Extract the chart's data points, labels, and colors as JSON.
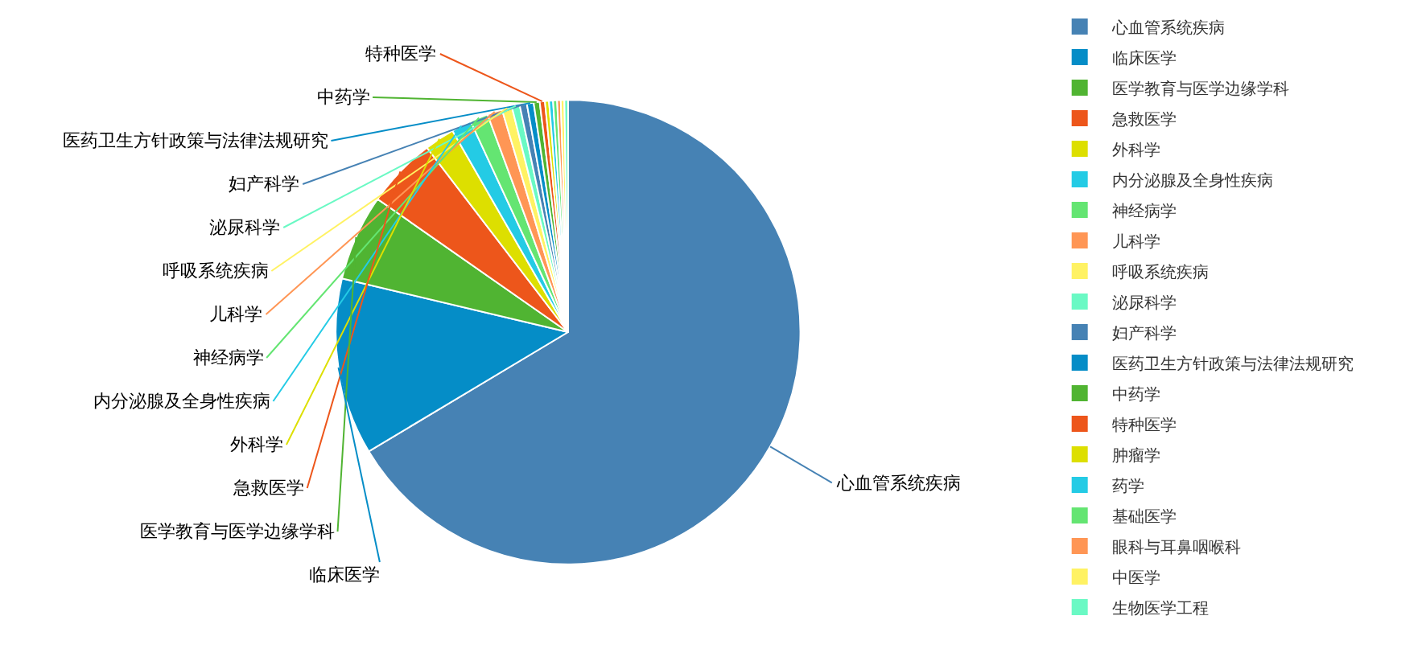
{
  "chart_data": {
    "type": "pie",
    "categories": [
      "心血管系统疾病",
      "临床医学",
      "医学教育与医学边缘学科",
      "急救医学",
      "外科学",
      "内分泌腺及全身性疾病",
      "神经病学",
      "儿科学",
      "呼吸系统疾病",
      "泌尿科学",
      "妇产科学",
      "医药卫生方针政策与法律法规研究",
      "中药学",
      "特种医学",
      "肿瘤学",
      "药学",
      "基础医学",
      "眼科与耳鼻咽喉科",
      "中医学",
      "生物医学工程"
    ],
    "values": [
      66.41,
      12.3,
      6.0,
      4.9,
      2.1,
      1.4,
      1.25,
      1.05,
      0.7,
      0.55,
      0.5,
      0.47,
      0.42,
      0.36,
      0.28,
      0.28,
      0.28,
      0.25,
      0.25,
      0.25
    ],
    "colors": [
      "#4682b4",
      "#058dc7",
      "#50b432",
      "#ed561b",
      "#dddf00",
      "#24cbe5",
      "#64e572",
      "#ff9655",
      "#fff263",
      "#6af9c4",
      "#4682b4",
      "#058dc7",
      "#50b432",
      "#ed561b",
      "#dddf00",
      "#24cbe5",
      "#64e572",
      "#ff9655",
      "#fff263",
      "#6af9c4"
    ],
    "value_labels": [
      "心血管系统疾病",
      "临床医学",
      "医学教育与医学边缘学科",
      "急救医学",
      "外科学",
      "内分泌腺及全身性疾病",
      "神经病学",
      "儿科学",
      "呼吸系统疾病",
      "泌尿科学",
      "妇产科学",
      "医药卫生方针政策与法律法规研究",
      "中药学",
      "特种医学",
      null,
      null,
      null,
      null,
      null,
      null
    ],
    "legend": "top right"
  }
}
